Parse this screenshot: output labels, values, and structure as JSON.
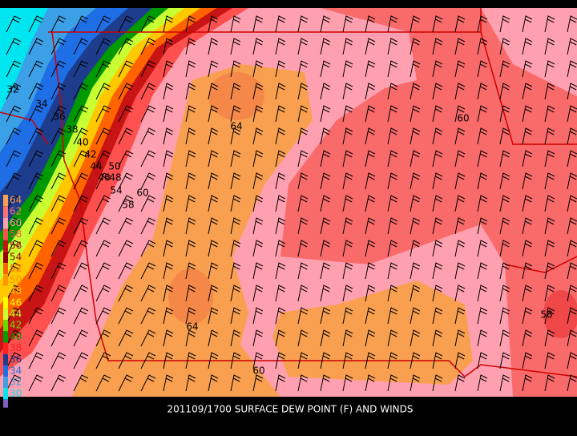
{
  "title": "201109/1700 SURFACE DEW POINT (F) AND WINDS",
  "legend": [
    {
      "label": "64",
      "color": "#f9a050"
    },
    {
      "label": "62",
      "color": "#ff7070"
    },
    {
      "label": "60",
      "color": "#ffa0b0"
    },
    {
      "label": "58",
      "color": "#ff5050"
    },
    {
      "label": "56",
      "color": "#c81414"
    },
    {
      "label": "54",
      "color": "#960000"
    },
    {
      "label": "52",
      "color": "#ff6400"
    },
    {
      "label": "50",
      "color": "#ff9600"
    },
    {
      "label": "48",
      "color": "#ffc800"
    },
    {
      "label": "46",
      "color": "#ffff00"
    },
    {
      "label": "44",
      "color": "#c8ff32"
    },
    {
      "label": "42",
      "color": "#64dc00"
    },
    {
      "label": "40",
      "color": "#00a000"
    },
    {
      "label": "38",
      "color": "#ff2020"
    },
    {
      "label": "36",
      "color": "#1e3c8c"
    },
    {
      "label": "34",
      "color": "#1e6ee6"
    },
    {
      "label": "32",
      "color": "#3ca0e6"
    },
    {
      "label": "30",
      "color": "#00e6f0"
    }
  ],
  "contour_labels": [
    "32",
    "34",
    "36",
    "38",
    "40",
    "42",
    "44",
    "46",
    "48",
    "50",
    "54",
    "58",
    "60",
    "64",
    "60",
    "64",
    "60",
    "58"
  ]
}
